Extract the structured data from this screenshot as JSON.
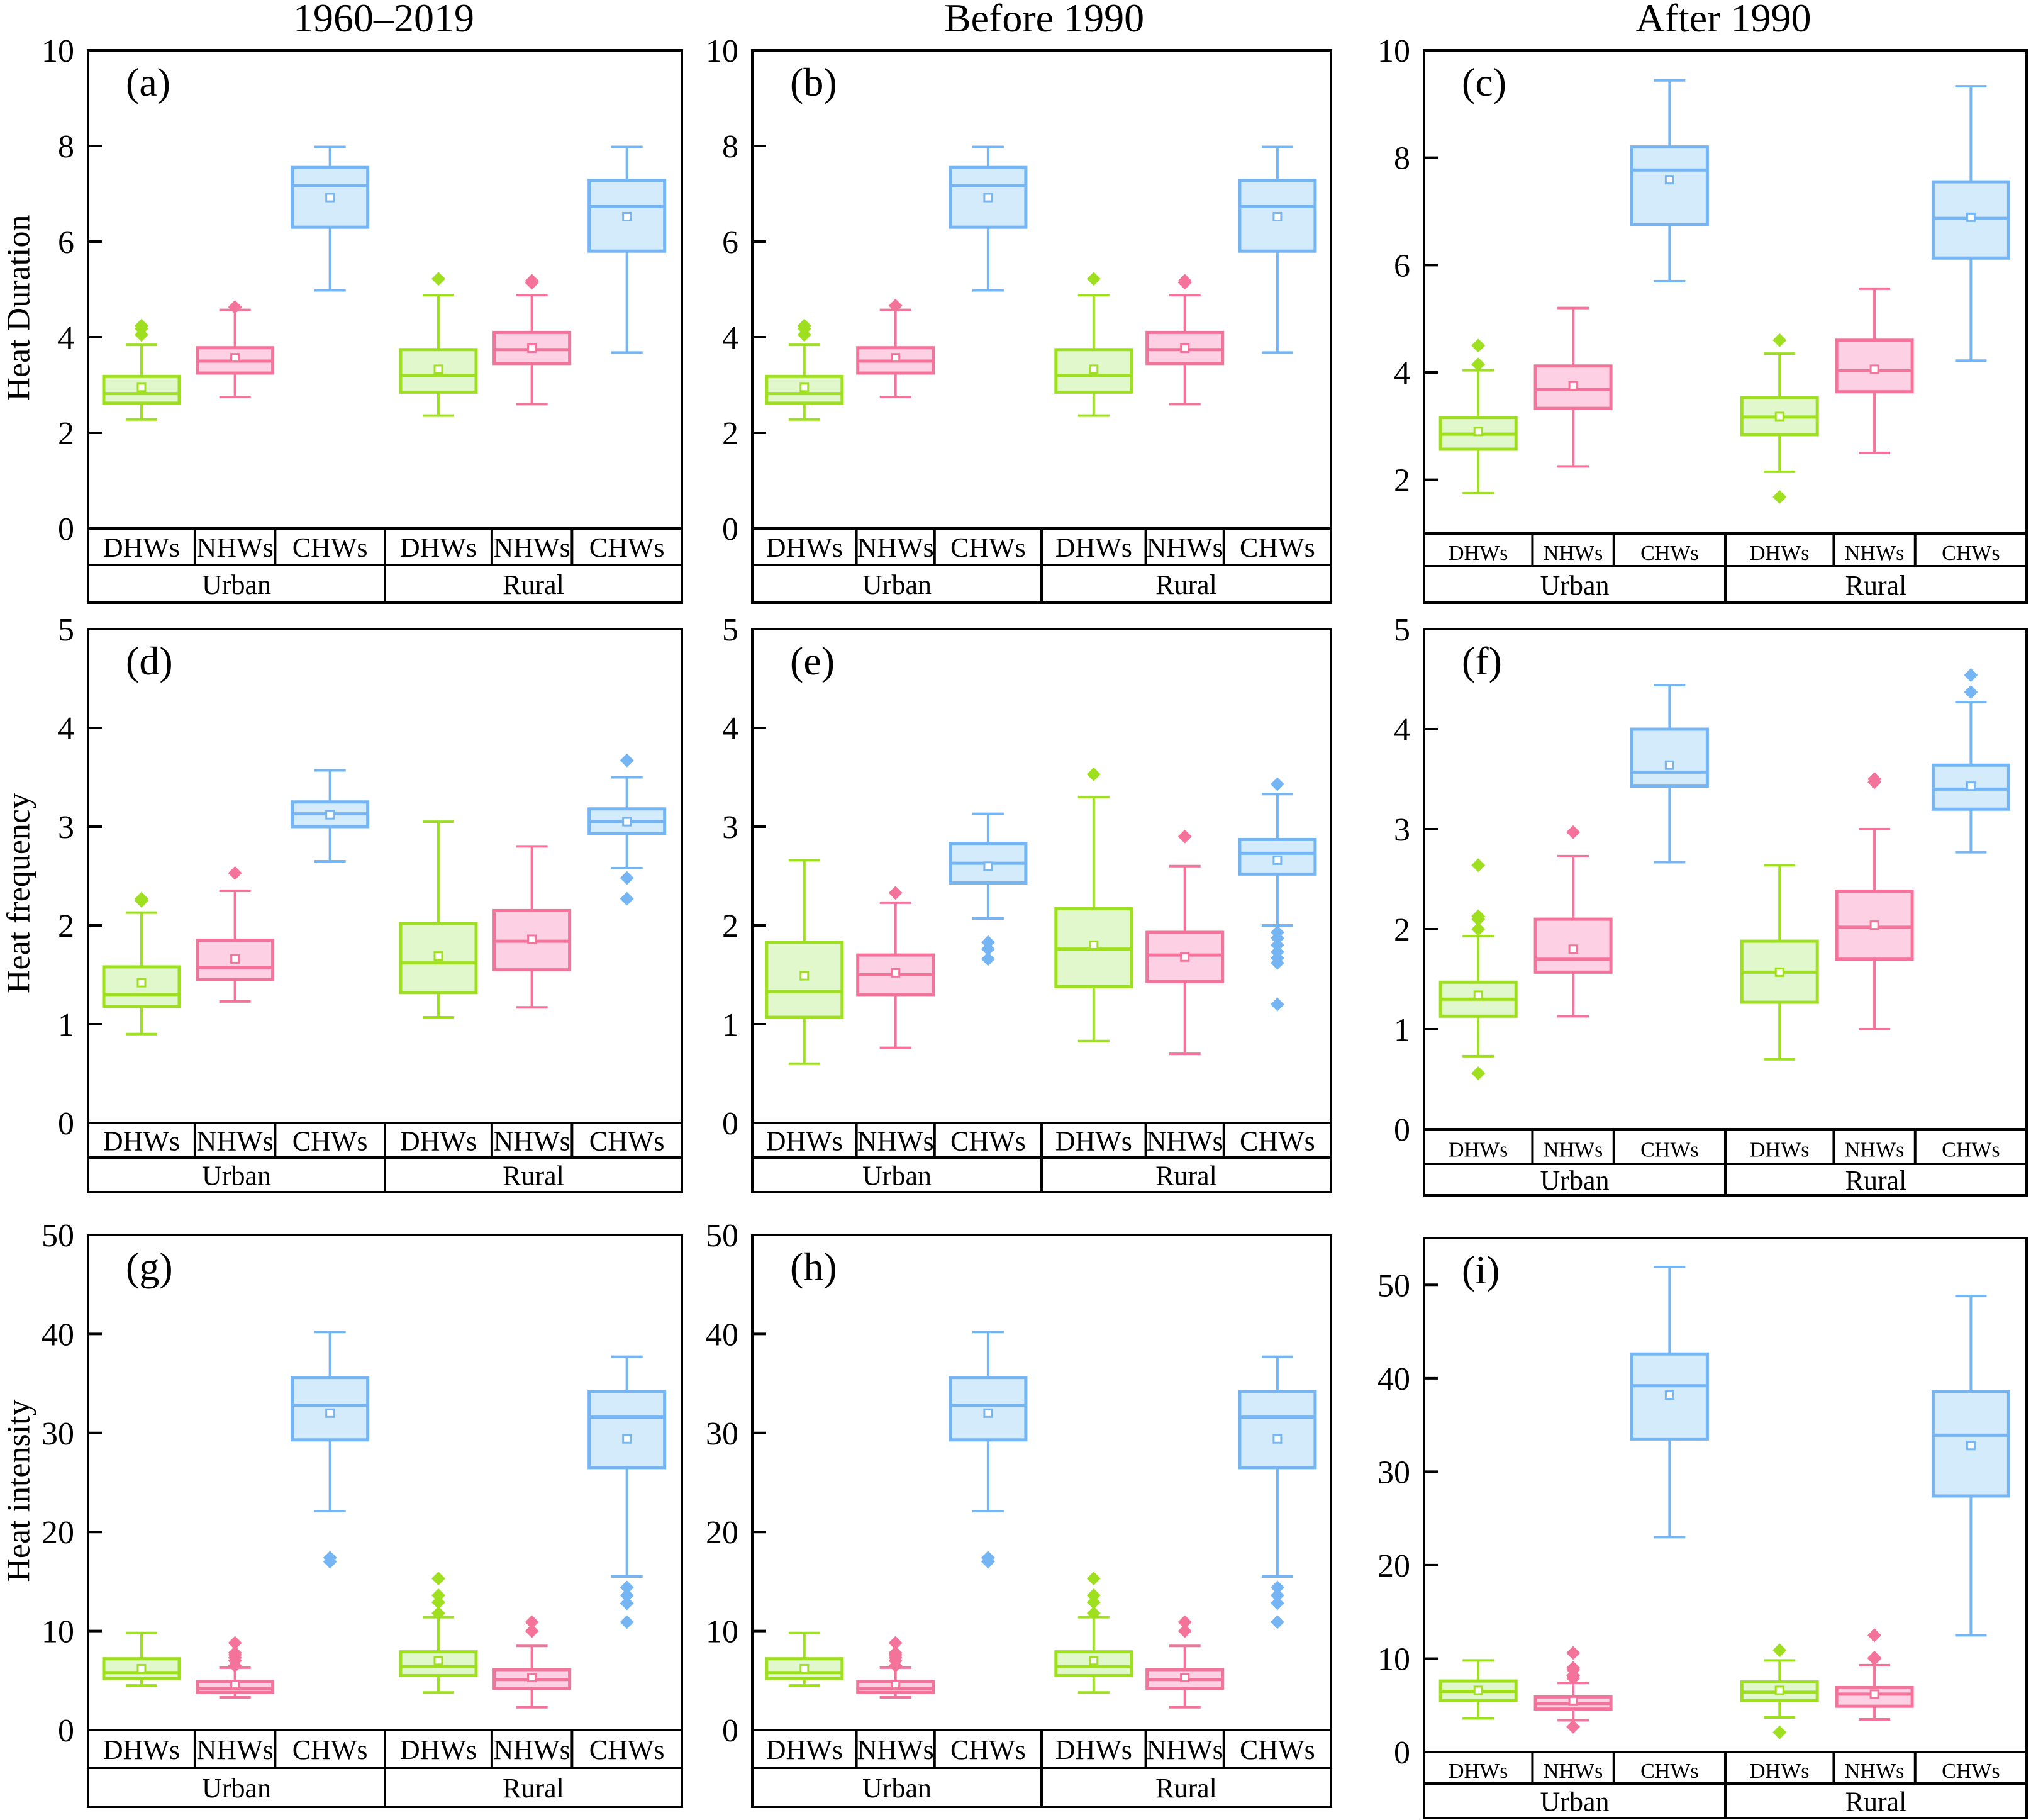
{
  "figure": {
    "column_titles": [
      "1960–2019",
      "Before 1990",
      "After 1990"
    ],
    "row_ylabels": [
      "Heat Duration",
      "Heat frequency",
      "Heat intensity"
    ],
    "colors": {
      "DHWs": {
        "stroke": "#9ee01f",
        "fill": "#e0f8cc"
      },
      "NHWs": {
        "stroke": "#f4739a",
        "fill": "#fdd0e3"
      },
      "CHWs": {
        "stroke": "#75b5f4",
        "fill": "#d3ebfb"
      }
    }
  },
  "chart_data": [
    {
      "panel": "(a)",
      "type": "box",
      "period": "1960–2019",
      "ylabel": "Heat Duration",
      "ylim": [
        0,
        10
      ],
      "yticks": [
        0,
        2,
        4,
        6,
        8,
        10
      ],
      "groups": [
        "Urban",
        "Rural"
      ],
      "categories": [
        "DHWs",
        "NHWs",
        "CHWs"
      ],
      "boxes": [
        {
          "group": "Urban",
          "category": "DHWs",
          "min": 2.28,
          "q1": 2.62,
          "median": 2.82,
          "q3": 3.18,
          "max": 3.84,
          "mean": 2.95,
          "outliers": [
            4.05,
            4.18,
            4.24
          ]
        },
        {
          "group": "Urban",
          "category": "NHWs",
          "min": 2.75,
          "q1": 3.25,
          "median": 3.5,
          "q3": 3.78,
          "max": 4.57,
          "mean": 3.57,
          "outliers": [
            4.63
          ]
        },
        {
          "group": "Urban",
          "category": "CHWs",
          "min": 4.98,
          "q1": 6.3,
          "median": 7.17,
          "q3": 7.55,
          "max": 7.98,
          "mean": 6.92,
          "outliers": []
        },
        {
          "group": "Rural",
          "category": "DHWs",
          "min": 2.36,
          "q1": 2.85,
          "median": 3.2,
          "q3": 3.74,
          "max": 4.88,
          "mean": 3.33,
          "outliers": [
            5.22
          ]
        },
        {
          "group": "Rural",
          "category": "NHWs",
          "min": 2.6,
          "q1": 3.45,
          "median": 3.74,
          "q3": 4.1,
          "max": 4.88,
          "mean": 3.77,
          "outliers": [
            5.14,
            5.18
          ]
        },
        {
          "group": "Rural",
          "category": "CHWs",
          "min": 3.68,
          "q1": 5.8,
          "median": 6.73,
          "q3": 7.28,
          "max": 7.98,
          "mean": 6.52,
          "outliers": []
        }
      ]
    },
    {
      "panel": "(b)",
      "type": "box",
      "period": "Before 1990",
      "ylabel": "",
      "ylim": [
        0,
        10
      ],
      "yticks": [
        0,
        2,
        4,
        6,
        8,
        10
      ],
      "groups": [
        "Urban",
        "Rural"
      ],
      "categories": [
        "DHWs",
        "NHWs",
        "CHWs"
      ],
      "boxes": [
        {
          "group": "Urban",
          "category": "DHWs",
          "min": 2.28,
          "q1": 2.62,
          "median": 2.82,
          "q3": 3.18,
          "max": 3.84,
          "mean": 2.95,
          "outliers": [
            4.05,
            4.18,
            4.24
          ]
        },
        {
          "group": "Urban",
          "category": "NHWs",
          "min": 2.75,
          "q1": 3.25,
          "median": 3.5,
          "q3": 3.78,
          "max": 4.57,
          "mean": 3.57,
          "outliers": [
            4.66
          ]
        },
        {
          "group": "Urban",
          "category": "CHWs",
          "min": 4.98,
          "q1": 6.3,
          "median": 7.17,
          "q3": 7.55,
          "max": 7.98,
          "mean": 6.92,
          "outliers": []
        },
        {
          "group": "Rural",
          "category": "DHWs",
          "min": 2.36,
          "q1": 2.85,
          "median": 3.2,
          "q3": 3.74,
          "max": 4.88,
          "mean": 3.33,
          "outliers": [
            5.22
          ]
        },
        {
          "group": "Rural",
          "category": "NHWs",
          "min": 2.6,
          "q1": 3.45,
          "median": 3.74,
          "q3": 4.1,
          "max": 4.88,
          "mean": 3.77,
          "outliers": [
            5.14,
            5.18
          ]
        },
        {
          "group": "Rural",
          "category": "CHWs",
          "min": 3.68,
          "q1": 5.8,
          "median": 6.73,
          "q3": 7.28,
          "max": 7.98,
          "mean": 6.52,
          "outliers": []
        }
      ]
    },
    {
      "panel": "(c)",
      "type": "box",
      "period": "After 1990",
      "ylabel": "",
      "ylim": [
        1,
        10
      ],
      "yticks": [
        2,
        4,
        6,
        8,
        10
      ],
      "groups": [
        "Urban",
        "Rural"
      ],
      "categories": [
        "DHWs",
        "NHWs",
        "CHWs"
      ],
      "boxes": [
        {
          "group": "Urban",
          "category": "DHWs",
          "min": 1.75,
          "q1": 2.57,
          "median": 2.85,
          "q3": 3.16,
          "max": 4.04,
          "mean": 2.9,
          "outliers": [
            4.15,
            4.5
          ]
        },
        {
          "group": "Urban",
          "category": "NHWs",
          "min": 2.25,
          "q1": 3.33,
          "median": 3.68,
          "q3": 4.12,
          "max": 5.2,
          "mean": 3.75,
          "outliers": []
        },
        {
          "group": "Urban",
          "category": "CHWs",
          "min": 5.7,
          "q1": 6.75,
          "median": 7.77,
          "q3": 8.2,
          "max": 9.44,
          "mean": 7.59,
          "outliers": []
        },
        {
          "group": "Rural",
          "category": "DHWs",
          "min": 2.15,
          "q1": 2.84,
          "median": 3.17,
          "q3": 3.53,
          "max": 4.35,
          "mean": 3.18,
          "outliers": [
            4.6,
            1.68
          ]
        },
        {
          "group": "Rural",
          "category": "NHWs",
          "min": 2.5,
          "q1": 3.64,
          "median": 4.03,
          "q3": 4.6,
          "max": 5.56,
          "mean": 4.06,
          "outliers": []
        },
        {
          "group": "Rural",
          "category": "CHWs",
          "min": 4.22,
          "q1": 6.13,
          "median": 6.87,
          "q3": 7.55,
          "max": 9.33,
          "mean": 6.89,
          "outliers": []
        }
      ]
    },
    {
      "panel": "(d)",
      "type": "box",
      "period": "1960–2019",
      "ylabel": "Heat frequency",
      "ylim": [
        0,
        5
      ],
      "yticks": [
        0,
        1,
        2,
        3,
        4,
        5
      ],
      "groups": [
        "Urban",
        "Rural"
      ],
      "categories": [
        "DHWs",
        "NHWs",
        "CHWs"
      ],
      "boxes": [
        {
          "group": "Urban",
          "category": "DHWs",
          "min": 0.9,
          "q1": 1.18,
          "median": 1.3,
          "q3": 1.58,
          "max": 2.13,
          "mean": 1.42,
          "outliers": [
            2.25,
            2.27
          ]
        },
        {
          "group": "Urban",
          "category": "NHWs",
          "min": 1.23,
          "q1": 1.45,
          "median": 1.57,
          "q3": 1.85,
          "max": 2.35,
          "mean": 1.66,
          "outliers": [
            2.53
          ]
        },
        {
          "group": "Urban",
          "category": "CHWs",
          "min": 2.65,
          "q1": 3.0,
          "median": 3.13,
          "q3": 3.25,
          "max": 3.57,
          "mean": 3.12,
          "outliers": []
        },
        {
          "group": "Rural",
          "category": "DHWs",
          "min": 1.07,
          "q1": 1.32,
          "median": 1.62,
          "q3": 2.02,
          "max": 3.05,
          "mean": 1.69,
          "outliers": []
        },
        {
          "group": "Rural",
          "category": "NHWs",
          "min": 1.17,
          "q1": 1.55,
          "median": 1.84,
          "q3": 2.15,
          "max": 2.8,
          "mean": 1.86,
          "outliers": []
        },
        {
          "group": "Rural",
          "category": "CHWs",
          "min": 2.58,
          "q1": 2.93,
          "median": 3.05,
          "q3": 3.18,
          "max": 3.5,
          "mean": 3.05,
          "outliers": [
            3.67,
            2.48,
            2.27
          ]
        }
      ]
    },
    {
      "panel": "(e)",
      "type": "box",
      "period": "Before 1990",
      "ylabel": "",
      "ylim": [
        0,
        5
      ],
      "yticks": [
        0,
        1,
        2,
        3,
        4,
        5
      ],
      "groups": [
        "Urban",
        "Rural"
      ],
      "categories": [
        "DHWs",
        "NHWs",
        "CHWs"
      ],
      "boxes": [
        {
          "group": "Urban",
          "category": "DHWs",
          "min": 0.6,
          "q1": 1.07,
          "median": 1.33,
          "q3": 1.83,
          "max": 2.66,
          "mean": 1.49,
          "outliers": []
        },
        {
          "group": "Urban",
          "category": "NHWs",
          "min": 0.76,
          "q1": 1.3,
          "median": 1.5,
          "q3": 1.7,
          "max": 2.23,
          "mean": 1.52,
          "outliers": [
            2.33
          ]
        },
        {
          "group": "Urban",
          "category": "CHWs",
          "min": 2.07,
          "q1": 2.43,
          "median": 2.63,
          "q3": 2.83,
          "max": 3.13,
          "mean": 2.6,
          "outliers": [
            1.83,
            1.76,
            1.66
          ]
        },
        {
          "group": "Rural",
          "category": "DHWs",
          "min": 0.83,
          "q1": 1.38,
          "median": 1.76,
          "q3": 2.17,
          "max": 3.3,
          "mean": 1.8,
          "outliers": [
            3.53
          ]
        },
        {
          "group": "Rural",
          "category": "NHWs",
          "min": 0.7,
          "q1": 1.43,
          "median": 1.7,
          "q3": 1.93,
          "max": 2.6,
          "mean": 1.68,
          "outliers": [
            2.9
          ]
        },
        {
          "group": "Rural",
          "category": "CHWs",
          "min": 2.0,
          "q1": 2.52,
          "median": 2.73,
          "q3": 2.87,
          "max": 3.33,
          "mean": 2.66,
          "outliers": [
            3.43,
            1.93,
            1.87,
            1.8,
            1.73,
            1.67,
            1.62,
            1.2
          ]
        }
      ]
    },
    {
      "panel": "(f)",
      "type": "box",
      "period": "After 1990",
      "ylabel": "",
      "ylim": [
        0,
        5
      ],
      "yticks": [
        0,
        1,
        2,
        3,
        4,
        5
      ],
      "groups": [
        "Urban",
        "Rural"
      ],
      "categories": [
        "DHWs",
        "NHWs",
        "CHWs"
      ],
      "boxes": [
        {
          "group": "Urban",
          "category": "DHWs",
          "min": 0.73,
          "q1": 1.13,
          "median": 1.3,
          "q3": 1.47,
          "max": 1.93,
          "mean": 1.34,
          "outliers": [
            2.0,
            2.1,
            2.13,
            2.64,
            0.56
          ]
        },
        {
          "group": "Urban",
          "category": "NHWs",
          "min": 1.13,
          "q1": 1.57,
          "median": 1.7,
          "q3": 2.1,
          "max": 2.73,
          "mean": 1.8,
          "outliers": [
            2.97
          ]
        },
        {
          "group": "Urban",
          "category": "CHWs",
          "min": 2.67,
          "q1": 3.43,
          "median": 3.57,
          "q3": 4.0,
          "max": 4.44,
          "mean": 3.64,
          "outliers": []
        },
        {
          "group": "Rural",
          "category": "DHWs",
          "min": 0.7,
          "q1": 1.27,
          "median": 1.57,
          "q3": 1.88,
          "max": 2.64,
          "mean": 1.57,
          "outliers": []
        },
        {
          "group": "Rural",
          "category": "NHWs",
          "min": 1.0,
          "q1": 1.7,
          "median": 2.02,
          "q3": 2.38,
          "max": 3.0,
          "mean": 2.04,
          "outliers": [
            3.47,
            3.5
          ]
        },
        {
          "group": "Rural",
          "category": "CHWs",
          "min": 2.77,
          "q1": 3.2,
          "median": 3.4,
          "q3": 3.64,
          "max": 4.27,
          "mean": 3.43,
          "outliers": [
            4.37,
            4.54
          ]
        }
      ]
    },
    {
      "panel": "(g)",
      "type": "box",
      "period": "1960–2019",
      "ylabel": "Heat intensity",
      "ylim": [
        0,
        50
      ],
      "yticks": [
        0,
        10,
        20,
        30,
        40,
        50
      ],
      "groups": [
        "Urban",
        "Rural"
      ],
      "categories": [
        "DHWs",
        "NHWs",
        "CHWs"
      ],
      "boxes": [
        {
          "group": "Urban",
          "category": "DHWs",
          "min": 4.5,
          "q1": 5.2,
          "median": 5.8,
          "q3": 7.2,
          "max": 9.8,
          "mean": 6.2,
          "outliers": []
        },
        {
          "group": "Urban",
          "category": "NHWs",
          "min": 3.3,
          "q1": 3.8,
          "median": 4.2,
          "q3": 4.9,
          "max": 6.3,
          "mean": 4.6,
          "outliers": [
            6.5,
            7.0,
            7.3,
            7.6,
            7.8,
            8.8
          ]
        },
        {
          "group": "Urban",
          "category": "CHWs",
          "min": 22.1,
          "q1": 29.3,
          "median": 32.8,
          "q3": 35.6,
          "max": 40.2,
          "mean": 32.0,
          "outliers": [
            17.0,
            17.4
          ]
        },
        {
          "group": "Rural",
          "category": "DHWs",
          "min": 3.8,
          "q1": 5.5,
          "median": 6.4,
          "q3": 7.9,
          "max": 11.4,
          "mean": 7.0,
          "outliers": [
            11.8,
            12.9,
            13.6,
            15.3
          ]
        },
        {
          "group": "Rural",
          "category": "NHWs",
          "min": 2.3,
          "q1": 4.2,
          "median": 5.1,
          "q3": 6.1,
          "max": 8.5,
          "mean": 5.3,
          "outliers": [
            10.0,
            10.9
          ]
        },
        {
          "group": "Rural",
          "category": "CHWs",
          "min": 15.5,
          "q1": 26.5,
          "median": 31.6,
          "q3": 34.2,
          "max": 37.7,
          "mean": 29.4,
          "outliers": [
            14.4,
            13.6,
            12.8,
            10.9
          ]
        }
      ]
    },
    {
      "panel": "(h)",
      "type": "box",
      "period": "Before 1990",
      "ylabel": "",
      "ylim": [
        0,
        50
      ],
      "yticks": [
        0,
        10,
        20,
        30,
        40,
        50
      ],
      "groups": [
        "Urban",
        "Rural"
      ],
      "categories": [
        "DHWs",
        "NHWs",
        "CHWs"
      ],
      "boxes": [
        {
          "group": "Urban",
          "category": "DHWs",
          "min": 4.5,
          "q1": 5.2,
          "median": 5.8,
          "q3": 7.2,
          "max": 9.8,
          "mean": 6.2,
          "outliers": []
        },
        {
          "group": "Urban",
          "category": "NHWs",
          "min": 3.3,
          "q1": 3.8,
          "median": 4.2,
          "q3": 4.9,
          "max": 6.3,
          "mean": 4.6,
          "outliers": [
            6.5,
            7.0,
            7.3,
            7.6,
            7.8,
            8.8
          ]
        },
        {
          "group": "Urban",
          "category": "CHWs",
          "min": 22.1,
          "q1": 29.3,
          "median": 32.8,
          "q3": 35.6,
          "max": 40.2,
          "mean": 32.0,
          "outliers": [
            17.0,
            17.4
          ]
        },
        {
          "group": "Rural",
          "category": "DHWs",
          "min": 3.8,
          "q1": 5.5,
          "median": 6.4,
          "q3": 7.9,
          "max": 11.4,
          "mean": 7.0,
          "outliers": [
            11.8,
            12.9,
            13.6,
            15.3
          ]
        },
        {
          "group": "Rural",
          "category": "NHWs",
          "min": 2.3,
          "q1": 4.2,
          "median": 5.1,
          "q3": 6.1,
          "max": 8.5,
          "mean": 5.3,
          "outliers": [
            10.0,
            10.9
          ]
        },
        {
          "group": "Rural",
          "category": "CHWs",
          "min": 15.5,
          "q1": 26.5,
          "median": 31.6,
          "q3": 34.2,
          "max": 37.7,
          "mean": 29.4,
          "outliers": [
            14.4,
            13.6,
            12.8,
            10.9
          ]
        }
      ]
    },
    {
      "panel": "(i)",
      "type": "box",
      "period": "After 1990",
      "ylabel": "",
      "ylim": [
        0,
        55
      ],
      "yticks": [
        0,
        10,
        20,
        30,
        40,
        50
      ],
      "groups": [
        "Urban",
        "Rural"
      ],
      "categories": [
        "DHWs",
        "NHWs",
        "CHWs"
      ],
      "boxes": [
        {
          "group": "Urban",
          "category": "DHWs",
          "min": 3.6,
          "q1": 5.5,
          "median": 6.5,
          "q3": 7.6,
          "max": 9.8,
          "mean": 6.6,
          "outliers": []
        },
        {
          "group": "Urban",
          "category": "NHWs",
          "min": 3.4,
          "q1": 4.6,
          "median": 5.2,
          "q3": 5.9,
          "max": 7.4,
          "mean": 5.5,
          "outliers": [
            7.9,
            8.2,
            8.8,
            9.0,
            10.6,
            2.7
          ]
        },
        {
          "group": "Urban",
          "category": "CHWs",
          "min": 23.0,
          "q1": 33.5,
          "median": 39.2,
          "q3": 42.6,
          "max": 51.9,
          "mean": 38.2,
          "outliers": []
        },
        {
          "group": "Rural",
          "category": "DHWs",
          "min": 3.7,
          "q1": 5.5,
          "median": 6.4,
          "q3": 7.5,
          "max": 9.8,
          "mean": 6.6,
          "outliers": [
            10.9,
            2.1
          ]
        },
        {
          "group": "Rural",
          "category": "NHWs",
          "min": 3.5,
          "q1": 4.9,
          "median": 6.2,
          "q3": 6.9,
          "max": 9.3,
          "mean": 6.2,
          "outliers": [
            10.0,
            10.1,
            12.5
          ]
        },
        {
          "group": "Rural",
          "category": "CHWs",
          "min": 12.5,
          "q1": 27.4,
          "median": 33.9,
          "q3": 38.6,
          "max": 48.8,
          "mean": 32.8,
          "outliers": []
        }
      ]
    }
  ]
}
